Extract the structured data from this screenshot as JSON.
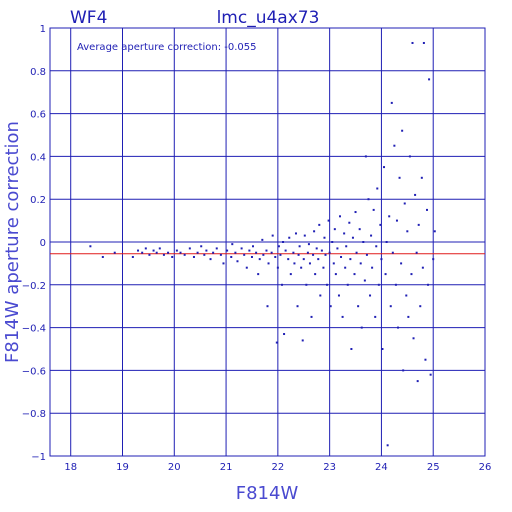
{
  "chart_data": {
    "type": "scatter",
    "title": "lmc_u4ax73",
    "chip_label": "WF4",
    "annotation": "Average aperture correction: -0.055",
    "xlabel": "F814W",
    "ylabel": "F814W aperture correction",
    "xlim": [
      17.6,
      26
    ],
    "ylim": [
      -1,
      1
    ],
    "x_ticks": [
      18,
      19,
      20,
      21,
      22,
      23,
      24,
      25,
      26
    ],
    "y_ticks": [
      -1,
      -0.8,
      -0.6,
      -0.4,
      -0.2,
      0,
      0.2,
      0.4,
      0.6,
      0.8,
      1
    ],
    "x_tick_labels": [
      "18",
      "19",
      "20",
      "21",
      "22",
      "23",
      "24",
      "25",
      "26"
    ],
    "y_tick_labels": [
      "−1",
      "−0.8",
      "−0.6",
      "−0.4",
      "−0.2",
      "0",
      "0.2",
      "0.4",
      "0.6",
      "0.8",
      "1"
    ],
    "grid": true,
    "reference_line": {
      "y": -0.055,
      "color": "#e01a1a"
    },
    "point_color": "#1f1fb4",
    "points": [
      [
        18.38,
        -0.02
      ],
      [
        18.62,
        -0.07
      ],
      [
        18.85,
        -0.05
      ],
      [
        19.2,
        -0.07
      ],
      [
        19.3,
        -0.04
      ],
      [
        19.38,
        -0.05
      ],
      [
        19.45,
        -0.03
      ],
      [
        19.52,
        -0.06
      ],
      [
        19.6,
        -0.04
      ],
      [
        19.66,
        -0.05
      ],
      [
        19.72,
        -0.03
      ],
      [
        19.8,
        -0.06
      ],
      [
        19.88,
        -0.05
      ],
      [
        19.96,
        -0.07
      ],
      [
        20.05,
        -0.04
      ],
      [
        20.12,
        -0.05
      ],
      [
        20.2,
        -0.06
      ],
      [
        20.3,
        -0.03
      ],
      [
        20.38,
        -0.07
      ],
      [
        20.45,
        -0.05
      ],
      [
        20.52,
        -0.02
      ],
      [
        20.58,
        -0.06
      ],
      [
        20.62,
        -0.04
      ],
      [
        20.7,
        -0.08
      ],
      [
        20.75,
        -0.05
      ],
      [
        20.82,
        -0.03
      ],
      [
        20.9,
        -0.06
      ],
      [
        20.95,
        -0.1
      ],
      [
        21.02,
        -0.04
      ],
      [
        21.1,
        -0.07
      ],
      [
        21.12,
        -0.01
      ],
      [
        21.18,
        -0.05
      ],
      [
        21.22,
        -0.09
      ],
      [
        21.3,
        -0.03
      ],
      [
        21.35,
        -0.06
      ],
      [
        21.4,
        -0.12
      ],
      [
        21.45,
        -0.04
      ],
      [
        21.5,
        -0.07
      ],
      [
        21.52,
        -0.02
      ],
      [
        21.58,
        -0.05
      ],
      [
        21.62,
        -0.15
      ],
      [
        21.65,
        -0.08
      ],
      [
        21.7,
        0.01
      ],
      [
        21.72,
        -0.06
      ],
      [
        21.78,
        -0.04
      ],
      [
        21.8,
        -0.3
      ],
      [
        21.82,
        -0.1
      ],
      [
        21.88,
        -0.05
      ],
      [
        21.9,
        0.03
      ],
      [
        21.95,
        -0.07
      ],
      [
        21.98,
        -0.47
      ],
      [
        22.0,
        -0.12
      ],
      [
        22.02,
        -0.02
      ],
      [
        22.05,
        -0.06
      ],
      [
        22.08,
        -0.2
      ],
      [
        22.1,
        0.0
      ],
      [
        22.12,
        -0.43
      ],
      [
        22.15,
        -0.04
      ],
      [
        22.2,
        -0.08
      ],
      [
        22.22,
        0.02
      ],
      [
        22.25,
        -0.15
      ],
      [
        22.3,
        -0.05
      ],
      [
        22.32,
        -0.1
      ],
      [
        22.35,
        0.04
      ],
      [
        22.38,
        -0.3
      ],
      [
        22.4,
        -0.06
      ],
      [
        22.42,
        -0.02
      ],
      [
        22.45,
        -0.12
      ],
      [
        22.48,
        -0.46
      ],
      [
        22.5,
        -0.08
      ],
      [
        22.52,
        0.03
      ],
      [
        22.55,
        -0.2
      ],
      [
        22.58,
        -0.05
      ],
      [
        22.6,
        -0.01
      ],
      [
        22.62,
        -0.1
      ],
      [
        22.65,
        -0.35
      ],
      [
        22.68,
        -0.06
      ],
      [
        22.7,
        0.05
      ],
      [
        22.72,
        -0.15
      ],
      [
        22.75,
        -0.03
      ],
      [
        22.78,
        -0.08
      ],
      [
        22.8,
        0.08
      ],
      [
        22.82,
        -0.25
      ],
      [
        22.85,
        -0.04
      ],
      [
        22.88,
        -0.12
      ],
      [
        22.9,
        0.02
      ],
      [
        22.92,
        -0.06
      ],
      [
        22.95,
        -0.2
      ],
      [
        22.98,
        0.1
      ],
      [
        23.0,
        -0.05
      ],
      [
        23.02,
        -0.3
      ],
      [
        23.05,
        0.0
      ],
      [
        23.08,
        -0.1
      ],
      [
        23.1,
        0.06
      ],
      [
        23.12,
        -0.15
      ],
      [
        23.15,
        -0.03
      ],
      [
        23.18,
        -0.25
      ],
      [
        23.2,
        0.12
      ],
      [
        23.22,
        -0.07
      ],
      [
        23.25,
        -0.35
      ],
      [
        23.28,
        0.04
      ],
      [
        23.3,
        -0.12
      ],
      [
        23.32,
        -0.02
      ],
      [
        23.35,
        -0.2
      ],
      [
        23.38,
        0.09
      ],
      [
        23.4,
        -0.08
      ],
      [
        23.42,
        -0.5
      ],
      [
        23.45,
        0.02
      ],
      [
        23.48,
        -0.15
      ],
      [
        23.5,
        0.14
      ],
      [
        23.52,
        -0.05
      ],
      [
        23.55,
        -0.3
      ],
      [
        23.58,
        0.06
      ],
      [
        23.6,
        -0.1
      ],
      [
        23.62,
        -0.4
      ],
      [
        23.65,
        0.0
      ],
      [
        23.68,
        -0.18
      ],
      [
        23.7,
        0.4
      ],
      [
        23.72,
        -0.06
      ],
      [
        23.75,
        0.2
      ],
      [
        23.78,
        -0.25
      ],
      [
        23.8,
        0.03
      ],
      [
        23.82,
        -0.12
      ],
      [
        23.85,
        0.15
      ],
      [
        23.88,
        -0.35
      ],
      [
        23.9,
        -0.02
      ],
      [
        23.92,
        0.25
      ],
      [
        23.95,
        -0.2
      ],
      [
        23.98,
        0.08
      ],
      [
        24.0,
        -0.08
      ],
      [
        24.02,
        -0.5
      ],
      [
        24.05,
        0.35
      ],
      [
        24.08,
        -0.15
      ],
      [
        24.1,
        0.0
      ],
      [
        24.12,
        -0.95
      ],
      [
        24.15,
        0.12
      ],
      [
        24.18,
        -0.3
      ],
      [
        24.2,
        0.65
      ],
      [
        24.22,
        -0.05
      ],
      [
        24.25,
        0.45
      ],
      [
        24.28,
        -0.2
      ],
      [
        24.3,
        0.1
      ],
      [
        24.32,
        -0.4
      ],
      [
        24.35,
        0.3
      ],
      [
        24.38,
        -0.1
      ],
      [
        24.4,
        0.52
      ],
      [
        24.42,
        -0.6
      ],
      [
        24.45,
        0.18
      ],
      [
        24.48,
        -0.25
      ],
      [
        24.5,
        0.05
      ],
      [
        24.52,
        -0.35
      ],
      [
        24.55,
        0.4
      ],
      [
        24.58,
        -0.15
      ],
      [
        24.6,
        0.93
      ],
      [
        24.62,
        -0.45
      ],
      [
        24.65,
        0.22
      ],
      [
        24.68,
        -0.05
      ],
      [
        24.7,
        -0.65
      ],
      [
        24.72,
        0.08
      ],
      [
        24.75,
        -0.3
      ],
      [
        24.78,
        0.3
      ],
      [
        24.8,
        -0.12
      ],
      [
        24.82,
        0.93
      ],
      [
        24.85,
        -0.55
      ],
      [
        24.88,
        0.15
      ],
      [
        24.9,
        -0.2
      ],
      [
        24.92,
        0.76
      ],
      [
        24.95,
        -0.62
      ],
      [
        25.0,
        -0.08
      ],
      [
        25.03,
        0.05
      ]
    ]
  }
}
